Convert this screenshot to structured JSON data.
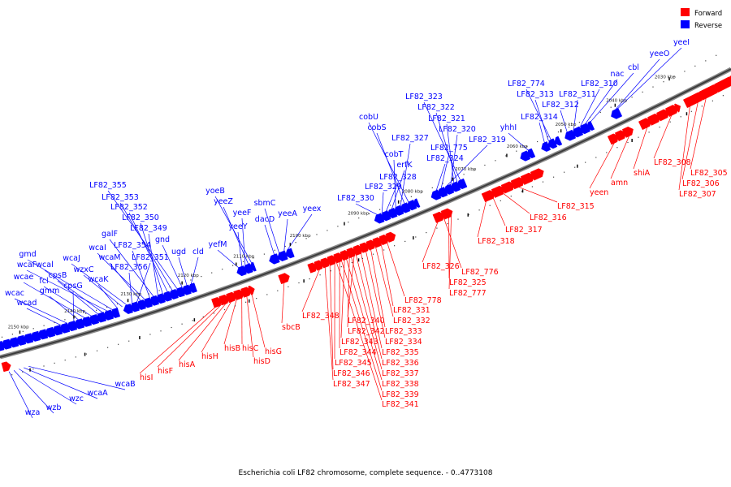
{
  "caption": "Escherichia coli LF82 chromosome, complete sequence. - 0..4773108",
  "legend": [
    {
      "label": "Forward",
      "color": "#ff0000"
    },
    {
      "label": "Reverse",
      "color": "#0000ff"
    }
  ],
  "colors": {
    "forward": "#ff0000",
    "reverse": "#0000ff",
    "backbone": "#555555"
  },
  "ticks": [
    "2030 kbp",
    "2040 kbp",
    "2050 kbp",
    "2060 kbp",
    "2070 kbp",
    "2080 kbp",
    "2090 kbp",
    "2100 kbp",
    "2110 kbp",
    "2120 kbp",
    "2130 kbp",
    "2140 kbp",
    "2150 kbp"
  ],
  "forward_genes": [
    "LF82_305",
    "LF82_306",
    "LF82_307",
    "LF82_308",
    "shiA",
    "amn",
    "yeen",
    "LF82_315",
    "LF82_316",
    "LF82_317",
    "LF82_318",
    "LF82_326",
    "LF82_776",
    "LF82_325",
    "LF82_777",
    "LF82_778",
    "LF82_331",
    "LF82_332",
    "LF82_333",
    "LF82_334",
    "LF82_335",
    "LF82_336",
    "LF82_337",
    "LF82_338",
    "LF82_339",
    "LF82_341",
    "LF82_340",
    "LF82_342",
    "LF82_343",
    "LF82_344",
    "LF82_345",
    "LF82_346",
    "LF82_347",
    "LF82_348",
    "sbcB",
    "hisG",
    "hisD",
    "hisC",
    "hisB",
    "hisH",
    "hisA",
    "hisF",
    "hisI"
  ],
  "reverse_genes": [
    "yeeI",
    "yeeO",
    "cbl",
    "nac",
    "LF82_310",
    "LF82_311",
    "LF82_312",
    "LF82_774",
    "LF82_313",
    "LF82_314",
    "yhhI",
    "LF82_323",
    "LF82_322",
    "LF82_321",
    "LF82_320",
    "LF82_319",
    "LF82_775",
    "LF82_324",
    "cobU",
    "cobS",
    "LF82_327",
    "cobT",
    "erfK",
    "LF82_328",
    "LF82_329",
    "LF82_330",
    "yeex",
    "yeeA",
    "sbmC",
    "dacD",
    "yoeB",
    "yeeZ",
    "yeeF",
    "yeeY",
    "yefM",
    "cld",
    "ugd",
    "gnd",
    "LF82_355",
    "LF82_353",
    "LF82_352",
    "LF82_350",
    "LF82_349",
    "galF",
    "LF82_354",
    "wcaI",
    "wcaM",
    "LF82_351",
    "LF82_356",
    "wcaJ",
    "wzxC",
    "wcaK",
    "gmd",
    "wcaF",
    "wcal",
    "cpsB",
    "fcl",
    "wcae",
    "gmm",
    "cpsG",
    "wcac",
    "wcad",
    "wcaB",
    "wcaA",
    "wzc",
    "wzb",
    "wza"
  ]
}
